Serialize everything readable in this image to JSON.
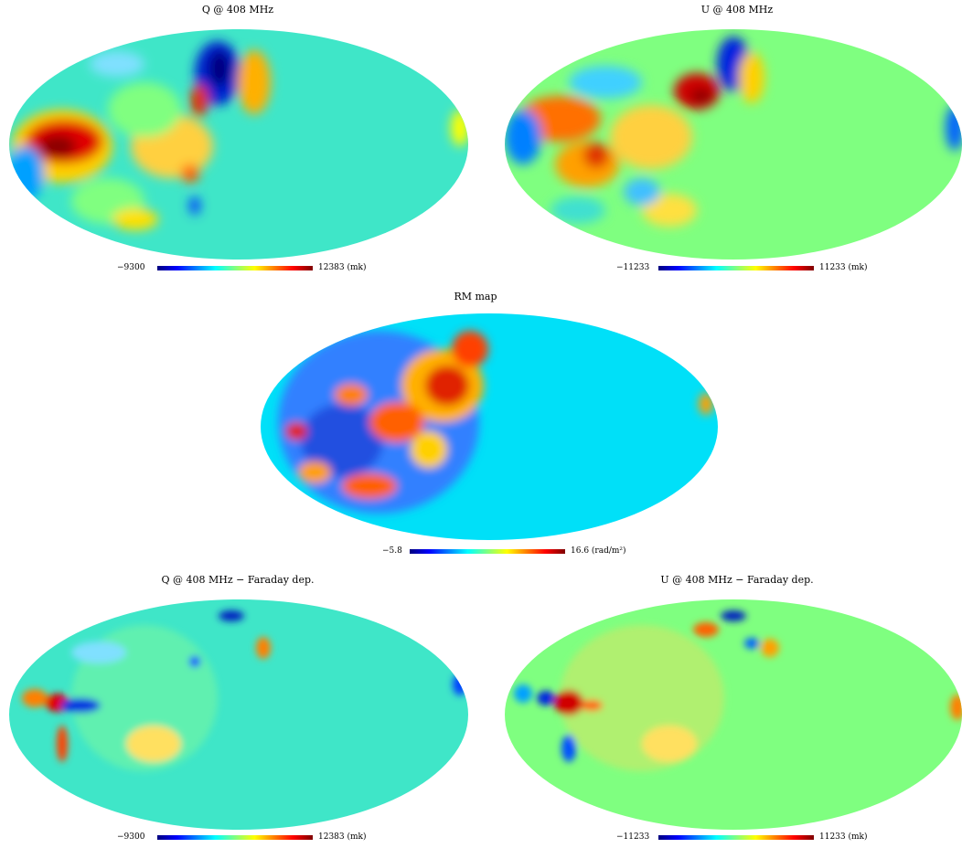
{
  "colors": {
    "jet": [
      "#00007f",
      "#0000ff",
      "#0080ff",
      "#00ffff",
      "#80ff80",
      "#ffff00",
      "#ff8000",
      "#ff0000",
      "#7f0000"
    ],
    "q_background": "#3fe6c8",
    "u_background": "#7fff80",
    "rm_background": "#00e0f8"
  },
  "panels": {
    "q": {
      "title": "Q @ 408 MHz",
      "min_label": "−9300",
      "max_label": "12383 (mk)"
    },
    "u": {
      "title": "U @ 408 MHz",
      "min_label": "−11233",
      "max_label": "11233 (mk)"
    },
    "rm": {
      "title": "RM map",
      "min_label": "−5.8",
      "max_label": "16.6 (rad/m²)"
    },
    "q_dep": {
      "title": "Q @ 408 MHz − Faraday dep.",
      "min_label": "−9300",
      "max_label": "12383 (mk)"
    },
    "u_dep": {
      "title": "U @ 408 MHz − Faraday dep.",
      "min_label": "−11233",
      "max_label": "11233 (mk)"
    }
  }
}
